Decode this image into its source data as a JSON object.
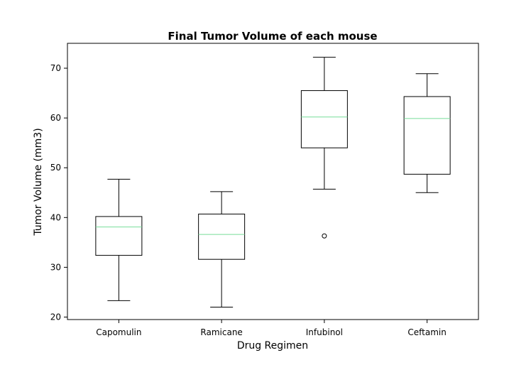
{
  "chart_data": {
    "type": "box",
    "title": "Final Tumor Volume of each mouse",
    "xlabel": "Drug Regimen",
    "ylabel": "Tumor Volume (mm3)",
    "ylim": [
      19.5,
      75
    ],
    "yticks": [
      "20",
      "30",
      "40",
      "50",
      "60",
      "70"
    ],
    "grid": false,
    "categories": [
      "Capomulin",
      "Ramicane",
      "Infubinol",
      "Ceftamin"
    ],
    "boxes": [
      {
        "whisker_low": 23.3,
        "q1": 32.4,
        "median": 38.1,
        "q3": 40.2,
        "whisker_high": 47.7,
        "outliers": []
      },
      {
        "whisker_low": 22.0,
        "q1": 31.6,
        "median": 36.6,
        "q3": 40.7,
        "whisker_high": 45.2,
        "outliers": []
      },
      {
        "whisker_low": 45.7,
        "q1": 54.0,
        "median": 60.2,
        "q3": 65.5,
        "whisker_high": 72.2,
        "outliers": [
          36.3
        ]
      },
      {
        "whisker_low": 45.0,
        "q1": 48.7,
        "median": 59.9,
        "q3": 64.3,
        "whisker_high": 68.9,
        "outliers": []
      }
    ],
    "colors": {
      "box": "#000000",
      "median": "#77dd99",
      "outlier": "#000000"
    }
  }
}
